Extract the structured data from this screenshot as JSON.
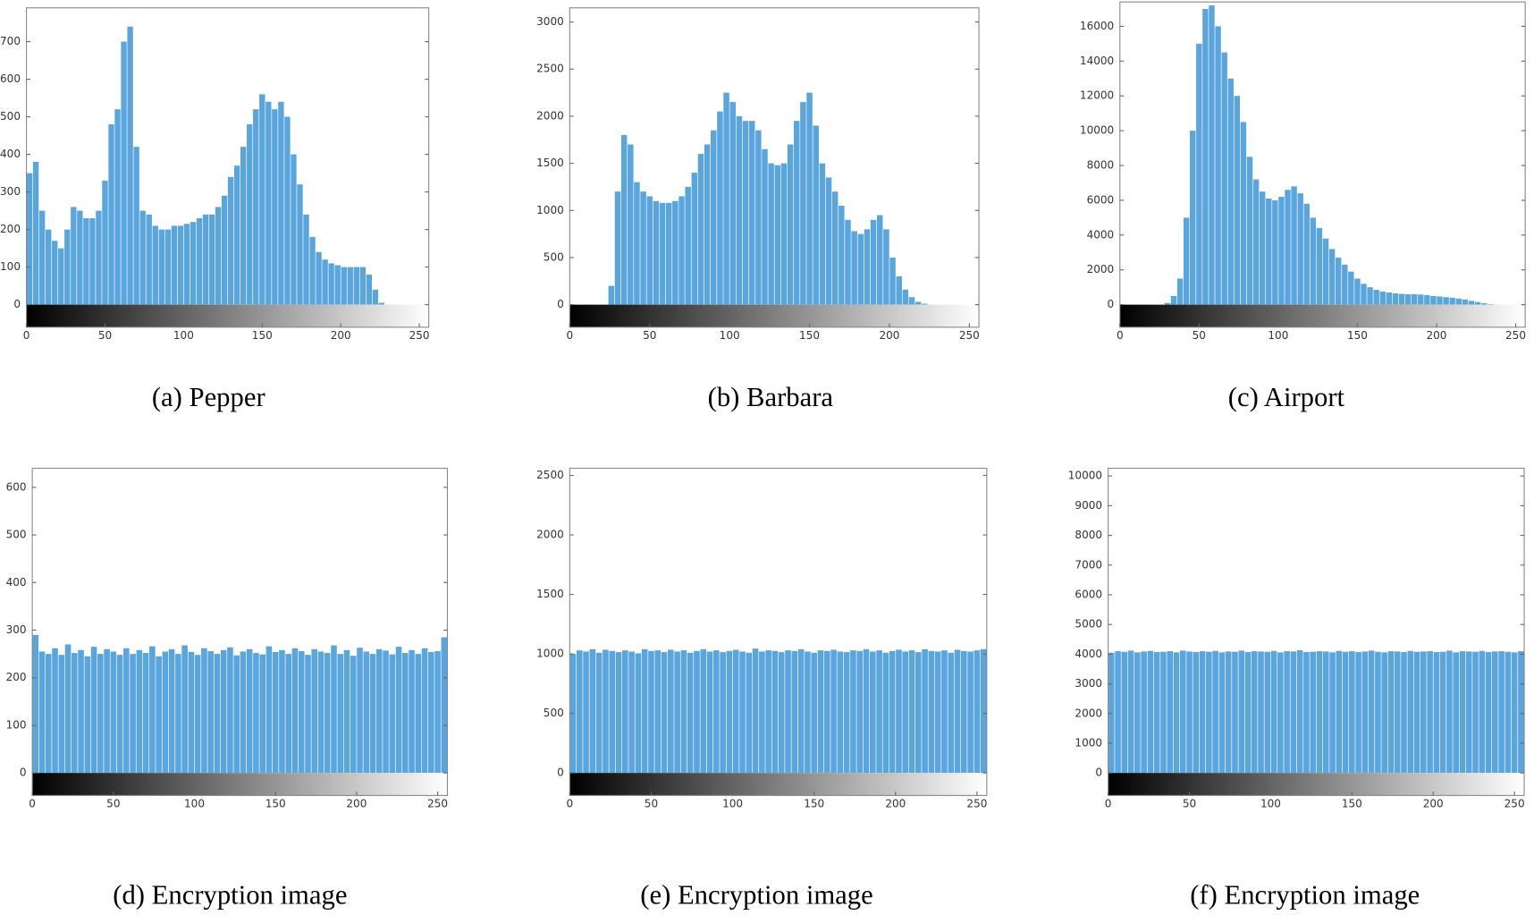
{
  "chart_data": [
    {
      "type": "histogram",
      "caption": "(a) Pepper",
      "color": "#5aa5dc",
      "xlim": [
        0,
        256
      ],
      "ylim": [
        0,
        790
      ],
      "xticks": [
        0,
        50,
        100,
        150,
        200,
        250
      ],
      "yticks": [
        0,
        100,
        200,
        300,
        400,
        500,
        600,
        700
      ],
      "bins": [
        0,
        4,
        8,
        12,
        16,
        20,
        24,
        28,
        32,
        36,
        40,
        44,
        48,
        52,
        56,
        60,
        64,
        68,
        72,
        76,
        80,
        84,
        88,
        92,
        96,
        100,
        104,
        108,
        112,
        116,
        120,
        124,
        128,
        132,
        136,
        140,
        144,
        148,
        152,
        156,
        160,
        164,
        168,
        172,
        176,
        180,
        184,
        188,
        192,
        196,
        200,
        204,
        208,
        212,
        216,
        220,
        224,
        228,
        232,
        236,
        240,
        244,
        248,
        252,
        256
      ],
      "values": [
        350,
        380,
        250,
        200,
        170,
        150,
        200,
        260,
        250,
        230,
        230,
        250,
        330,
        480,
        520,
        700,
        740,
        420,
        250,
        240,
        210,
        200,
        200,
        210,
        210,
        215,
        220,
        230,
        240,
        240,
        260,
        290,
        340,
        370,
        420,
        480,
        520,
        560,
        540,
        520,
        540,
        500,
        400,
        320,
        240,
        180,
        140,
        120,
        110,
        105,
        100,
        100,
        100,
        100,
        80,
        40,
        5,
        0,
        0,
        0,
        0,
        0,
        0,
        0
      ]
    },
    {
      "type": "histogram",
      "caption": "(b) Barbara",
      "color": "#5aa5dc",
      "xlim": [
        0,
        256
      ],
      "ylim": [
        0,
        3150
      ],
      "xticks": [
        0,
        50,
        100,
        150,
        200,
        250
      ],
      "yticks": [
        0,
        500,
        1000,
        1500,
        2000,
        2500,
        3000
      ],
      "bins": [
        0,
        4,
        8,
        12,
        16,
        20,
        24,
        28,
        32,
        36,
        40,
        44,
        48,
        52,
        56,
        60,
        64,
        68,
        72,
        76,
        80,
        84,
        88,
        92,
        96,
        100,
        104,
        108,
        112,
        116,
        120,
        124,
        128,
        132,
        136,
        140,
        144,
        148,
        152,
        156,
        160,
        164,
        168,
        172,
        176,
        180,
        184,
        188,
        192,
        196,
        200,
        204,
        208,
        212,
        216,
        220,
        224,
        228,
        232,
        236,
        240,
        244,
        248,
        252,
        256
      ],
      "values": [
        0,
        0,
        0,
        0,
        0,
        0,
        200,
        1200,
        1800,
        1700,
        1300,
        1200,
        1150,
        1100,
        1080,
        1080,
        1100,
        1150,
        1250,
        1400,
        1600,
        1700,
        1850,
        2050,
        2250,
        2150,
        2000,
        1950,
        1950,
        1850,
        1650,
        1500,
        1480,
        1500,
        1700,
        1950,
        2150,
        2250,
        1900,
        1500,
        1350,
        1200,
        1050,
        900,
        780,
        750,
        800,
        900,
        950,
        800,
        500,
        300,
        160,
        80,
        30,
        10,
        0,
        0,
        0,
        0,
        0,
        0,
        0,
        0
      ]
    },
    {
      "type": "histogram",
      "caption": "(c) Airport",
      "color": "#5aa5dc",
      "xlim": [
        0,
        256
      ],
      "ylim": [
        0,
        17400
      ],
      "xticks": [
        0,
        50,
        100,
        150,
        200,
        250
      ],
      "yticks": [
        0,
        2000,
        4000,
        6000,
        8000,
        10000,
        12000,
        14000,
        16000
      ],
      "bins": [
        0,
        4,
        8,
        12,
        16,
        20,
        24,
        28,
        32,
        36,
        40,
        44,
        48,
        52,
        56,
        60,
        64,
        68,
        72,
        76,
        80,
        84,
        88,
        92,
        96,
        100,
        104,
        108,
        112,
        116,
        120,
        124,
        128,
        132,
        136,
        140,
        144,
        148,
        152,
        156,
        160,
        164,
        168,
        172,
        176,
        180,
        184,
        188,
        192,
        196,
        200,
        204,
        208,
        212,
        216,
        220,
        224,
        228,
        232,
        236,
        240,
        244,
        248,
        252,
        256
      ],
      "values": [
        0,
        0,
        0,
        0,
        0,
        0,
        0,
        100,
        500,
        1500,
        5000,
        10000,
        15000,
        17000,
        17200,
        16000,
        14500,
        13000,
        12000,
        10500,
        8500,
        7200,
        6500,
        6100,
        6000,
        6200,
        6600,
        6800,
        6400,
        5800,
        5000,
        4400,
        3800,
        3200,
        2700,
        2300,
        1900,
        1500,
        1200,
        1000,
        850,
        750,
        700,
        650,
        620,
        600,
        600,
        580,
        550,
        500,
        470,
        430,
        400,
        350,
        300,
        220,
        150,
        80,
        30,
        10,
        0,
        0,
        0,
        0
      ]
    },
    {
      "type": "histogram",
      "caption": "(d) Encryption image",
      "color": "#5aa5dc",
      "xlim": [
        0,
        256
      ],
      "ylim": [
        0,
        640
      ],
      "xticks": [
        0,
        50,
        100,
        150,
        200,
        250
      ],
      "yticks": [
        0,
        100,
        200,
        300,
        400,
        500,
        600
      ],
      "bins": [
        0,
        4,
        8,
        12,
        16,
        20,
        24,
        28,
        32,
        36,
        40,
        44,
        48,
        52,
        56,
        60,
        64,
        68,
        72,
        76,
        80,
        84,
        88,
        92,
        96,
        100,
        104,
        108,
        112,
        116,
        120,
        124,
        128,
        132,
        136,
        140,
        144,
        148,
        152,
        156,
        160,
        164,
        168,
        172,
        176,
        180,
        184,
        188,
        192,
        196,
        200,
        204,
        208,
        212,
        216,
        220,
        224,
        228,
        232,
        236,
        240,
        244,
        248,
        252,
        256
      ],
      "values": [
        290,
        255,
        250,
        262,
        248,
        270,
        252,
        258,
        245,
        265,
        250,
        260,
        255,
        248,
        262,
        250,
        258,
        252,
        266,
        245,
        255,
        260,
        250,
        268,
        254,
        248,
        262,
        256,
        250,
        258,
        264,
        247,
        255,
        260,
        252,
        249,
        266,
        254,
        258,
        250,
        262,
        256,
        248,
        260,
        255,
        252,
        268,
        250,
        258,
        246,
        263,
        255,
        250,
        260,
        257,
        249,
        265,
        252,
        258,
        250,
        262,
        254,
        256,
        285
      ]
    },
    {
      "type": "histogram",
      "caption": "(e) Encryption image",
      "color": "#5aa5dc",
      "xlim": [
        0,
        256
      ],
      "ylim": [
        0,
        2560
      ],
      "xticks": [
        0,
        50,
        100,
        150,
        200,
        250
      ],
      "yticks": [
        0,
        500,
        1000,
        1500,
        2000,
        2500
      ],
      "bins": [
        0,
        4,
        8,
        12,
        16,
        20,
        24,
        28,
        32,
        36,
        40,
        44,
        48,
        52,
        56,
        60,
        64,
        68,
        72,
        76,
        80,
        84,
        88,
        92,
        96,
        100,
        104,
        108,
        112,
        116,
        120,
        124,
        128,
        132,
        136,
        140,
        144,
        148,
        152,
        156,
        160,
        164,
        168,
        172,
        176,
        180,
        184,
        188,
        192,
        196,
        200,
        204,
        208,
        212,
        216,
        220,
        224,
        228,
        232,
        236,
        240,
        244,
        248,
        252,
        256
      ],
      "values": [
        1000,
        1030,
        1020,
        1040,
        1010,
        1035,
        1025,
        1015,
        1030,
        1020,
        1005,
        1040,
        1025,
        1030,
        1015,
        1035,
        1020,
        1030,
        1010,
        1025,
        1040,
        1020,
        1030,
        1015,
        1025,
        1035,
        1020,
        1010,
        1045,
        1020,
        1030,
        1025,
        1015,
        1030,
        1025,
        1040,
        1020,
        1010,
        1030,
        1025,
        1035,
        1020,
        1015,
        1030,
        1025,
        1040,
        1020,
        1030,
        1010,
        1025,
        1035,
        1020,
        1030,
        1015,
        1040,
        1025,
        1020,
        1030,
        1010,
        1035,
        1025,
        1020,
        1030,
        1040
      ]
    },
    {
      "type": "histogram",
      "caption": "(f) Encryption image",
      "color": "#5aa5dc",
      "xlim": [
        0,
        256
      ],
      "ylim": [
        0,
        10260
      ],
      "xticks": [
        0,
        50,
        100,
        150,
        200,
        250
      ],
      "yticks": [
        0,
        1000,
        2000,
        3000,
        4000,
        5000,
        6000,
        7000,
        8000,
        9000,
        10000
      ],
      "bins": [
        0,
        4,
        8,
        12,
        16,
        20,
        24,
        28,
        32,
        36,
        40,
        44,
        48,
        52,
        56,
        60,
        64,
        68,
        72,
        76,
        80,
        84,
        88,
        92,
        96,
        100,
        104,
        108,
        112,
        116,
        120,
        124,
        128,
        132,
        136,
        140,
        144,
        148,
        152,
        156,
        160,
        164,
        168,
        172,
        176,
        180,
        184,
        188,
        192,
        196,
        200,
        204,
        208,
        212,
        216,
        220,
        224,
        228,
        232,
        236,
        240,
        244,
        248,
        252,
        256
      ],
      "values": [
        4050,
        4100,
        4080,
        4120,
        4060,
        4090,
        4110,
        4070,
        4080,
        4100,
        4060,
        4120,
        4090,
        4070,
        4100,
        4080,
        4110,
        4060,
        4090,
        4080,
        4120,
        4070,
        4100,
        4090,
        4080,
        4110,
        4060,
        4100,
        4090,
        4130,
        4070,
        4080,
        4100,
        4090,
        4060,
        4110,
        4080,
        4100,
        4070,
        4090,
        4120,
        4080,
        4060,
        4100,
        4090,
        4070,
        4110,
        4080,
        4090,
        4100,
        4070,
        4080,
        4120,
        4060,
        4100,
        4090,
        4080,
        4110,
        4070,
        4090,
        4100,
        4080,
        4060,
        4100
      ]
    }
  ]
}
